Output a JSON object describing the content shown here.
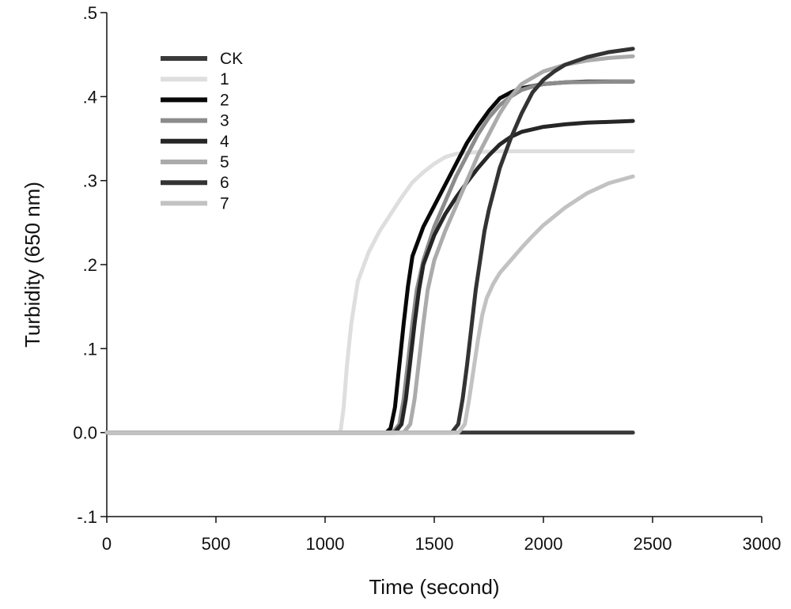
{
  "chart_data": {
    "type": "line",
    "title": "",
    "xlabel": "Time (second)",
    "ylabel": "Turbidity (650 nm)",
    "xlim": [
      0,
      3000
    ],
    "ylim": [
      -0.1,
      0.5
    ],
    "x_ticks": [
      0,
      500,
      1000,
      1500,
      2000,
      2500,
      3000
    ],
    "x_tick_labels": [
      "0",
      "500",
      "1000",
      "1500",
      "2000",
      "2500",
      "3000"
    ],
    "y_ticks": [
      -0.1,
      0.0,
      0.1,
      0.2,
      0.3,
      0.4,
      0.5
    ],
    "y_tick_labels": [
      "-.1",
      "0.0",
      ".1",
      ".2",
      ".3",
      ".4",
      ".5"
    ],
    "grid": false,
    "legend_position": "top-left",
    "series": [
      {
        "name": "CK",
        "color": "#3a3a3a",
        "x": [
          0,
          500,
          1000,
          1500,
          2000,
          2410
        ],
        "y": [
          0.0,
          0.0,
          0.0,
          0.0,
          0.0,
          0.0
        ]
      },
      {
        "name": "1",
        "color": "#dedede",
        "x": [
          0,
          1070,
          1085,
          1100,
          1120,
          1150,
          1200,
          1250,
          1300,
          1350,
          1400,
          1450,
          1500,
          1550,
          1600,
          1700,
          1800,
          2000,
          2410
        ],
        "y": [
          0.0,
          0.0,
          0.03,
          0.08,
          0.13,
          0.18,
          0.215,
          0.24,
          0.26,
          0.28,
          0.298,
          0.31,
          0.32,
          0.328,
          0.332,
          0.334,
          0.335,
          0.335,
          0.335
        ]
      },
      {
        "name": "2",
        "color": "#080808",
        "x": [
          0,
          1280,
          1300,
          1320,
          1340,
          1360,
          1380,
          1400,
          1450,
          1500,
          1550,
          1600,
          1650,
          1700,
          1750,
          1800,
          1850,
          1900,
          2000,
          2100,
          2200,
          2410
        ],
        "y": [
          0.0,
          0.0,
          0.005,
          0.03,
          0.08,
          0.13,
          0.175,
          0.21,
          0.245,
          0.27,
          0.295,
          0.32,
          0.345,
          0.365,
          0.383,
          0.398,
          0.405,
          0.41,
          0.415,
          0.417,
          0.418,
          0.418
        ]
      },
      {
        "name": "3",
        "color": "#8c8c8c",
        "x": [
          0,
          1310,
          1340,
          1360,
          1380,
          1400,
          1420,
          1450,
          1500,
          1550,
          1600,
          1650,
          1700,
          1750,
          1800,
          1850,
          1900,
          1950,
          2000,
          2100,
          2410
        ],
        "y": [
          0.0,
          0.0,
          0.01,
          0.04,
          0.085,
          0.13,
          0.17,
          0.205,
          0.245,
          0.275,
          0.305,
          0.33,
          0.355,
          0.375,
          0.39,
          0.4,
          0.408,
          0.412,
          0.415,
          0.417,
          0.418
        ]
      },
      {
        "name": "4",
        "color": "#262626",
        "x": [
          0,
          1320,
          1350,
          1370,
          1390,
          1410,
          1430,
          1450,
          1500,
          1550,
          1600,
          1650,
          1700,
          1750,
          1800,
          1850,
          1900,
          2000,
          2100,
          2200,
          2410
        ],
        "y": [
          0.0,
          0.0,
          0.01,
          0.04,
          0.085,
          0.13,
          0.17,
          0.2,
          0.235,
          0.26,
          0.28,
          0.298,
          0.315,
          0.33,
          0.343,
          0.352,
          0.358,
          0.364,
          0.367,
          0.369,
          0.371
        ]
      },
      {
        "name": "5",
        "color": "#ababab",
        "x": [
          0,
          1360,
          1390,
          1410,
          1430,
          1450,
          1470,
          1500,
          1550,
          1600,
          1650,
          1700,
          1750,
          1800,
          1850,
          1900,
          2000,
          2100,
          2200,
          2300,
          2410
        ],
        "y": [
          0.0,
          0.0,
          0.01,
          0.04,
          0.085,
          0.13,
          0.17,
          0.205,
          0.24,
          0.27,
          0.3,
          0.33,
          0.355,
          0.38,
          0.4,
          0.415,
          0.43,
          0.438,
          0.443,
          0.446,
          0.448
        ]
      },
      {
        "name": "6",
        "color": "#333333",
        "x": [
          0,
          1580,
          1610,
          1630,
          1650,
          1670,
          1690,
          1710,
          1730,
          1750,
          1775,
          1800,
          1850,
          1900,
          1950,
          2000,
          2050,
          2100,
          2200,
          2300,
          2410
        ],
        "y": [
          0.0,
          0.0,
          0.01,
          0.04,
          0.08,
          0.125,
          0.17,
          0.205,
          0.24,
          0.265,
          0.29,
          0.315,
          0.35,
          0.38,
          0.405,
          0.42,
          0.43,
          0.438,
          0.447,
          0.453,
          0.457
        ]
      },
      {
        "name": "7",
        "color": "#c2c2c2",
        "x": [
          0,
          1610,
          1640,
          1660,
          1680,
          1700,
          1720,
          1740,
          1770,
          1800,
          1850,
          1900,
          1950,
          2000,
          2100,
          2200,
          2300,
          2410
        ],
        "y": [
          0.0,
          0.0,
          0.01,
          0.04,
          0.075,
          0.11,
          0.14,
          0.16,
          0.177,
          0.19,
          0.205,
          0.22,
          0.234,
          0.247,
          0.268,
          0.285,
          0.297,
          0.305
        ]
      }
    ]
  }
}
